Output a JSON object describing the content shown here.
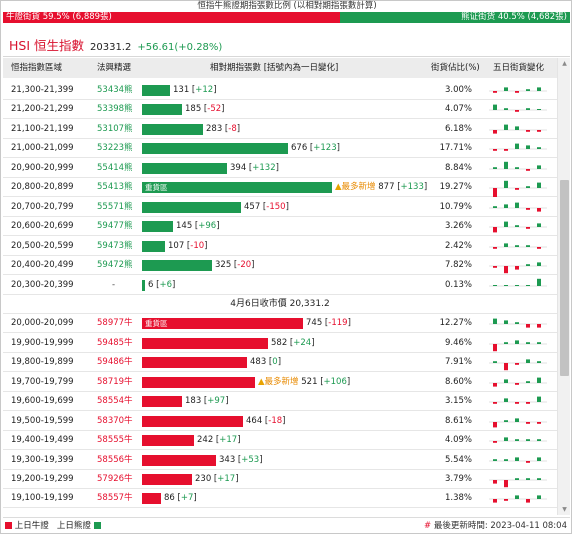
{
  "title": "恒指牛熊證期指張數比例 (以相對期指張數計算)",
  "ratio": {
    "bull_label": "牛證街貨 59.5% (6,889張)",
    "bear_label": "熊证街货 40.5% (4,682張)",
    "bull_fraction": 0.595
  },
  "index": {
    "name": "HSI 恒生指數",
    "value": "20331.2",
    "change": "+56.61(+0.28%)"
  },
  "headers": {
    "range": "恒指指數區域",
    "code": "法興精選",
    "qty": "相對期指張數 [括號內為一日變化]",
    "pct": "街貨佔比(%)",
    "trend": "五日街貨變化"
  },
  "heavy_label": "重貨區",
  "more_label": "最多新增",
  "bear_rows": [
    {
      "range": "21,300-21,399",
      "code": "53434熊",
      "qty": "131",
      "chg": "+12",
      "pct": "3.00%",
      "n": 131,
      "spark": [
        -1,
        2,
        -1,
        1,
        2
      ]
    },
    {
      "range": "21,200-21,299",
      "code": "53398熊",
      "qty": "185",
      "chg": "-52",
      "pct": "4.07%",
      "n": 185,
      "spark": [
        3,
        1,
        -1,
        1,
        0
      ]
    },
    {
      "range": "21,100-21,199",
      "code": "53107熊",
      "qty": "283",
      "chg": "-8",
      "pct": "6.18%",
      "n": 283,
      "spark": [
        -2,
        3,
        2,
        -1,
        -1
      ]
    },
    {
      "range": "21,000-21,099",
      "code": "53223熊",
      "qty": "676",
      "chg": "+123",
      "pct": "17.71%",
      "n": 676,
      "spark": [
        -1,
        -1,
        3,
        2,
        1
      ]
    },
    {
      "range": "20,900-20,999",
      "code": "55414熊",
      "qty": "394",
      "chg": "+132",
      "pct": "8.84%",
      "n": 394,
      "spark": [
        1,
        4,
        1,
        -1,
        2
      ]
    },
    {
      "range": "20,800-20,899",
      "code": "55413熊",
      "qty": "877",
      "chg": "+133",
      "pct": "19.27%",
      "n": 877,
      "heavy": true,
      "more": true,
      "spark": [
        -5,
        4,
        -1,
        1,
        3
      ]
    },
    {
      "range": "20,700-20,799",
      "code": "55571熊",
      "qty": "457",
      "chg": "-150",
      "pct": "10.79%",
      "n": 457,
      "spark": [
        1,
        2,
        3,
        -1,
        -2
      ]
    },
    {
      "range": "20,600-20,699",
      "code": "59477熊",
      "qty": "145",
      "chg": "+96",
      "pct": "3.26%",
      "n": 145,
      "spark": [
        -3,
        3,
        1,
        -1,
        2
      ]
    },
    {
      "range": "20,500-20,599",
      "code": "59473熊",
      "qty": "107",
      "chg": "-10",
      "pct": "2.42%",
      "n": 107,
      "spark": [
        -1,
        2,
        1,
        1,
        -1
      ]
    },
    {
      "range": "20,400-20,499",
      "code": "59472熊",
      "qty": "325",
      "chg": "-20",
      "pct": "7.82%",
      "n": 325,
      "spark": [
        -1,
        -4,
        -2,
        1,
        2
      ]
    },
    {
      "range": "20,300-20,399",
      "code": "-",
      "qty": "6",
      "chg": "+6",
      "pct": "0.13%",
      "n": 6,
      "spark": [
        0,
        0,
        0,
        0,
        4
      ]
    }
  ],
  "mid_label": "4月6日收市價 20,331.2",
  "bull_rows": [
    {
      "range": "20,000-20,099",
      "code": "58977牛",
      "qty": "745",
      "chg": "-119",
      "pct": "12.27%",
      "n": 745,
      "heavy": true,
      "spark": [
        3,
        2,
        1,
        -2,
        -2
      ]
    },
    {
      "range": "19,900-19,999",
      "code": "59485牛",
      "qty": "582",
      "chg": "+24",
      "pct": "9.46%",
      "n": 582,
      "spark": [
        -4,
        1,
        2,
        1,
        1
      ]
    },
    {
      "range": "19,800-19,899",
      "code": "59486牛",
      "qty": "483",
      "chg": "0",
      "pct": "7.91%",
      "n": 483,
      "spark": [
        1,
        -4,
        -1,
        2,
        1
      ]
    },
    {
      "range": "19,700-19,799",
      "code": "58719牛",
      "qty": "521",
      "chg": "+106",
      "pct": "8.60%",
      "n": 521,
      "more": true,
      "spark": [
        -2,
        2,
        -1,
        1,
        3
      ]
    },
    {
      "range": "19,600-19,699",
      "code": "58554牛",
      "qty": "183",
      "chg": "+97",
      "pct": "3.15%",
      "n": 183,
      "spark": [
        -1,
        2,
        -1,
        -1,
        3
      ]
    },
    {
      "range": "19,500-19,599",
      "code": "58370牛",
      "qty": "464",
      "chg": "-18",
      "pct": "8.61%",
      "n": 464,
      "spark": [
        -3,
        1,
        2,
        -1,
        -1
      ]
    },
    {
      "range": "19,400-19,499",
      "code": "58555牛",
      "qty": "242",
      "chg": "+17",
      "pct": "4.09%",
      "n": 242,
      "spark": [
        -1,
        2,
        1,
        1,
        1
      ]
    },
    {
      "range": "19,300-19,399",
      "code": "58556牛",
      "qty": "343",
      "chg": "+53",
      "pct": "5.54%",
      "n": 343,
      "spark": [
        1,
        1,
        2,
        -1,
        2
      ]
    },
    {
      "range": "19,200-19,299",
      "code": "57926牛",
      "qty": "230",
      "chg": "+17",
      "pct": "3.79%",
      "n": 230,
      "spark": [
        -2,
        -4,
        1,
        1,
        1
      ]
    },
    {
      "range": "19,100-19,199",
      "code": "58557牛",
      "qty": "86",
      "chg": "+7",
      "pct": "1.38%",
      "n": 86,
      "spark": [
        -2,
        -1,
        2,
        -2,
        2
      ]
    }
  ],
  "footer": {
    "legend_bull": "上日牛證",
    "legend_bear": "上日熊證",
    "hash": "#",
    "update": "最後更新時間: 2023-04-11 08:04"
  },
  "colors": {
    "bull": "#e60f2e",
    "bear": "#1d9a51",
    "more": "#e88a00"
  }
}
